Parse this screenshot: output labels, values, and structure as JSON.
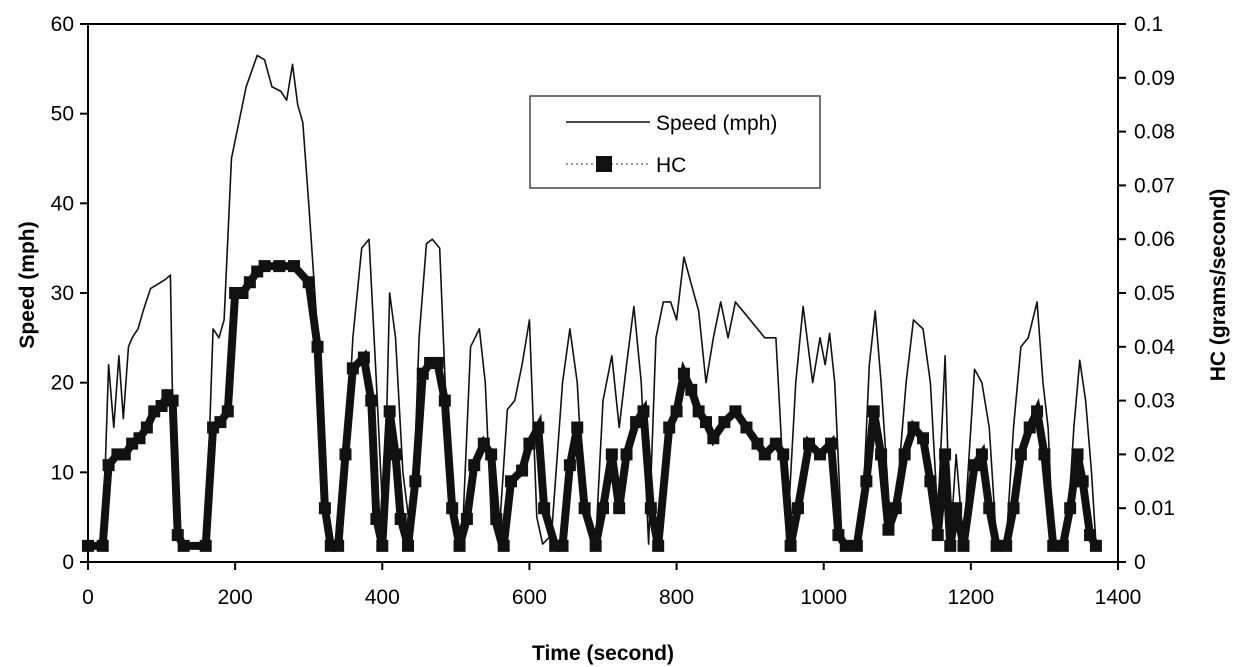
{
  "chart_data": {
    "type": "line",
    "title": "",
    "xlabel": "Time (second)",
    "ylabel": "Speed (mph)",
    "y2label": "HC (grams/second)",
    "xlim": [
      0,
      1400
    ],
    "ylim": [
      0,
      60
    ],
    "y2lim": [
      0,
      0.1
    ],
    "xticks": [
      "0",
      "200",
      "400",
      "600",
      "800",
      "1000",
      "1200",
      "1400"
    ],
    "yticks": [
      "0",
      "10",
      "20",
      "30",
      "40",
      "50",
      "60"
    ],
    "y2ticks": [
      "0",
      "0.01",
      "0.02",
      "0.03",
      "0.04",
      "0.05",
      "0.06",
      "0.07",
      "0.08",
      "0.09",
      "0.1"
    ],
    "grid": false,
    "legend_position": "top-center",
    "series": [
      {
        "name": "Speed (mph)",
        "axis": "left",
        "color": "#111111",
        "x": [
          0,
          20,
          28,
          35,
          42,
          48,
          55,
          60,
          68,
          75,
          85,
          95,
          105,
          112,
          118,
          125,
          160,
          170,
          178,
          185,
          195,
          205,
          215,
          230,
          240,
          250,
          262,
          270,
          278,
          285,
          292,
          300,
          310,
          322,
          330,
          345,
          360,
          372,
          382,
          392,
          402,
          410,
          418,
          428,
          440,
          450,
          460,
          468,
          478,
          488,
          500,
          510,
          520,
          532,
          540,
          548,
          558,
          570,
          580,
          590,
          600,
          610,
          618,
          630,
          645,
          655,
          665,
          675,
          690,
          700,
          712,
          722,
          732,
          742,
          752,
          762,
          772,
          782,
          792,
          800,
          810,
          820,
          830,
          840,
          850,
          860,
          870,
          880,
          890,
          900,
          910,
          920,
          935,
          950,
          962,
          972,
          985,
          995,
          1002,
          1008,
          1015,
          1025,
          1040,
          1052,
          1062,
          1070,
          1078,
          1090,
          1100,
          1112,
          1122,
          1135,
          1145,
          1155,
          1165,
          1172,
          1180,
          1190,
          1205,
          1215,
          1225,
          1235,
          1248,
          1258,
          1268,
          1278,
          1290,
          1298,
          1305,
          1312,
          1330,
          1340,
          1348,
          1356,
          1364,
          1370
        ],
        "values": [
          2,
          2,
          22,
          15,
          23,
          16,
          24,
          25,
          26,
          28,
          30.5,
          31,
          31.5,
          32,
          3,
          2,
          2,
          26,
          25,
          27,
          45,
          49,
          53,
          56.5,
          56,
          53,
          52.5,
          51.5,
          55.5,
          51,
          49,
          40,
          28,
          5,
          2,
          2,
          25,
          35,
          36,
          20,
          3,
          30,
          25,
          10,
          2,
          25,
          35.5,
          36,
          35,
          15,
          2,
          5,
          24,
          26,
          20,
          5,
          2,
          17,
          18,
          22,
          27,
          5,
          2,
          3,
          20,
          26,
          20,
          5,
          2,
          18,
          23,
          15,
          22,
          28.5,
          20,
          2,
          25,
          29,
          29,
          27,
          34,
          31,
          28,
          20,
          25,
          29,
          25,
          29,
          28,
          27,
          26,
          25,
          25,
          2,
          20,
          28.5,
          20,
          25,
          22,
          25.5,
          20,
          2,
          2,
          4,
          22,
          28,
          20,
          5,
          8,
          20,
          27,
          26,
          20,
          5,
          23,
          2,
          12,
          2,
          21.5,
          20,
          15,
          2,
          2,
          15,
          24,
          25,
          29,
          20,
          15,
          2,
          2,
          15,
          22.5,
          18,
          10,
          2
        ]
      },
      {
        "name": "HC",
        "axis": "right",
        "color": "#111111",
        "marker": "square",
        "x": [
          0,
          20,
          28,
          40,
          50,
          60,
          70,
          80,
          90,
          100,
          108,
          115,
          122,
          130,
          160,
          170,
          180,
          190,
          200,
          210,
          220,
          230,
          240,
          260,
          280,
          300,
          312,
          322,
          330,
          340,
          350,
          360,
          375,
          385,
          392,
          400,
          410,
          418,
          425,
          435,
          445,
          455,
          465,
          475,
          485,
          495,
          505,
          515,
          525,
          538,
          548,
          555,
          565,
          575,
          590,
          600,
          612,
          620,
          635,
          645,
          655,
          665,
          675,
          690,
          700,
          712,
          722,
          732,
          745,
          755,
          765,
          775,
          790,
          800,
          810,
          820,
          830,
          840,
          850,
          865,
          880,
          895,
          910,
          920,
          935,
          945,
          955,
          965,
          980,
          995,
          1010,
          1020,
          1030,
          1045,
          1058,
          1068,
          1078,
          1088,
          1098,
          1110,
          1122,
          1135,
          1145,
          1155,
          1165,
          1172,
          1180,
          1190,
          1205,
          1215,
          1225,
          1235,
          1248,
          1258,
          1268,
          1280,
          1290,
          1300,
          1312,
          1325,
          1335,
          1345,
          1352,
          1362,
          1370
        ],
        "values": [
          0.003,
          0.003,
          0.018,
          0.02,
          0.02,
          0.022,
          0.023,
          0.025,
          0.028,
          0.029,
          0.031,
          0.03,
          0.005,
          0.003,
          0.003,
          0.025,
          0.026,
          0.028,
          0.05,
          0.05,
          0.052,
          0.054,
          0.055,
          0.055,
          0.055,
          0.052,
          0.04,
          0.01,
          0.003,
          0.003,
          0.02,
          0.036,
          0.038,
          0.03,
          0.008,
          0.003,
          0.028,
          0.02,
          0.008,
          0.003,
          0.015,
          0.035,
          0.037,
          0.037,
          0.03,
          0.01,
          0.003,
          0.008,
          0.018,
          0.022,
          0.02,
          0.008,
          0.003,
          0.015,
          0.017,
          0.022,
          0.025,
          0.01,
          0.003,
          0.003,
          0.018,
          0.025,
          0.01,
          0.003,
          0.01,
          0.02,
          0.01,
          0.02,
          0.026,
          0.028,
          0.01,
          0.003,
          0.025,
          0.028,
          0.035,
          0.032,
          0.028,
          0.026,
          0.023,
          0.026,
          0.028,
          0.025,
          0.022,
          0.02,
          0.022,
          0.02,
          0.003,
          0.01,
          0.022,
          0.02,
          0.022,
          0.005,
          0.003,
          0.003,
          0.015,
          0.028,
          0.02,
          0.006,
          0.01,
          0.02,
          0.025,
          0.023,
          0.015,
          0.005,
          0.02,
          0.003,
          0.01,
          0.003,
          0.018,
          0.02,
          0.01,
          0.003,
          0.003,
          0.01,
          0.02,
          0.025,
          0.028,
          0.02,
          0.003,
          0.003,
          0.01,
          0.02,
          0.015,
          0.005,
          0.003
        ]
      }
    ]
  }
}
